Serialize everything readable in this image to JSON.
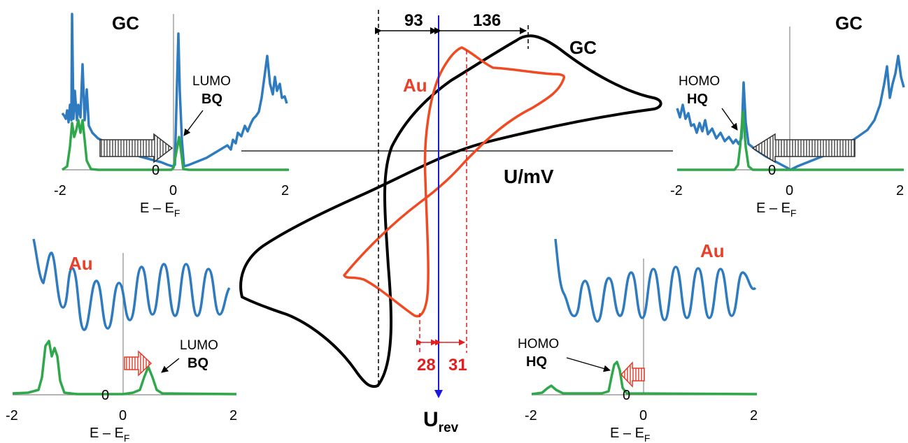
{
  "cv": {
    "xlabel": "U/mV",
    "urev_main": "U",
    "urev_sub": "rev",
    "gc_label": "GC",
    "au_label": "Au",
    "gc_left_gap": "93",
    "gc_right_gap": "136",
    "au_left_gap": "28",
    "au_right_gap": "31"
  },
  "panels": {
    "top_left": {
      "title": "GC",
      "orbital": "LUMO",
      "molecule": "BQ",
      "zero": "0",
      "ticks": [
        "-2",
        "0",
        "2"
      ],
      "xlabel_main": "E – E",
      "xlabel_sub": "F"
    },
    "top_right": {
      "title": "GC",
      "orbital": "HOMO",
      "molecule": "HQ",
      "zero": "0",
      "ticks": [
        "-2",
        "0",
        "2"
      ],
      "xlabel_main": "E – E",
      "xlabel_sub": "F"
    },
    "bottom_left": {
      "title": "Au",
      "orbital": "LUMO",
      "molecule": "BQ",
      "zero": "0",
      "ticks": [
        "-2",
        "0",
        "2"
      ],
      "xlabel_main": "E – E",
      "xlabel_sub": "F"
    },
    "bottom_right": {
      "title": "Au",
      "orbital": "HOMO",
      "molecule": "HQ",
      "zero": "0",
      "ticks": [
        "-2",
        "0",
        "2"
      ],
      "xlabel_main": "E – E",
      "xlabel_sub": "F"
    }
  },
  "colors": {
    "dos_substrate": "#2f7bbf",
    "dos_molecule": "#2ea84a",
    "cv_gc": "#000000",
    "cv_au": "#f04a22",
    "urev_line": "#1a1adf",
    "au_label": "#e8402a"
  }
}
